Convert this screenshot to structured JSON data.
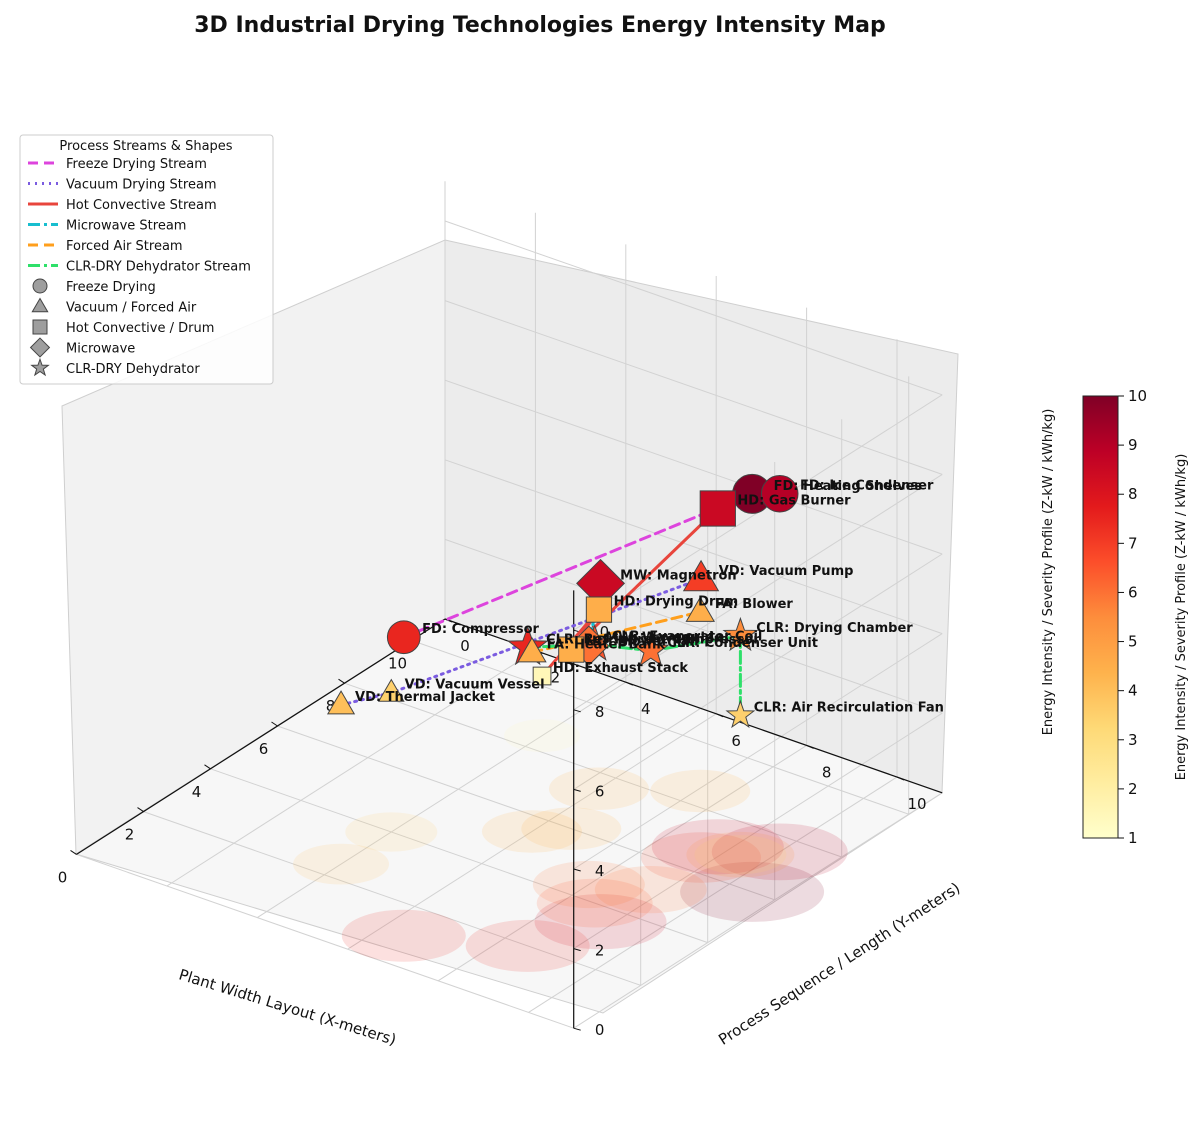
{
  "chart_data": {
    "type": "scatter",
    "title": "3D Industrial Drying Technologies Energy Intensity Map",
    "xlabel": "Plant Width Layout (X-meters)",
    "ylabel": "Process Sequence / Length (Y-meters)",
    "zlabel": "Energy Intensity / Severity Profile (Z-kW / kWh/kg)",
    "xlim": [
      0,
      11
    ],
    "ylim": [
      0,
      11
    ],
    "zlim": [
      0,
      11
    ],
    "xticks": [
      "0",
      "2",
      "4",
      "6",
      "8",
      "10"
    ],
    "yticks": [
      "0",
      "2",
      "4",
      "6",
      "8",
      "10"
    ],
    "zticks": [
      "0",
      "2",
      "4",
      "6",
      "8",
      "10"
    ],
    "grid": true,
    "legend_placement": "upper-left",
    "legend_title": "Process Streams & Shapes",
    "colorbar": {
      "label": "Energy Intensity / Severity Profile (Z-kW / kWh/kg)",
      "range": [
        1,
        10
      ],
      "ticks": [
        "1",
        "2",
        "3",
        "4",
        "5",
        "6",
        "7",
        "8",
        "9",
        "10"
      ],
      "colormap": [
        "#ffffcc",
        "#ffeda0",
        "#fed976",
        "#feb24c",
        "#fd8d3c",
        "#fc4e2a",
        "#e31a1c",
        "#bd0026",
        "#800026"
      ]
    },
    "streams": [
      {
        "name": "Freeze Drying Stream",
        "color": "#dd44dd",
        "dash": "10,6",
        "width": 3,
        "points": [
          "FD: Compressor",
          "FD: Heating Shelves",
          "FD: Ice Condenser"
        ]
      },
      {
        "name": "Vacuum Drying Stream",
        "color": "#7b5ce0",
        "dash": "2,5",
        "width": 3,
        "points": [
          "VD: Thermal Jacket",
          "VD: Vacuum Vessel",
          "VD: Vacuum Pump"
        ]
      },
      {
        "name": "Hot Convective Stream",
        "color": "#e8453c",
        "dash": "",
        "width": 3,
        "points": [
          "HD: Gas Burner",
          "HD: Blower Fan",
          "HD: Drying Drum",
          "HD: Exhaust Stack"
        ]
      },
      {
        "name": "Microwave Stream",
        "color": "#17becf",
        "dash": "12,4,3,4",
        "width": 3,
        "points": [
          "MW: Magnetron",
          "MW: Waveguide"
        ]
      },
      {
        "name": "Forced Air Stream",
        "color": "#ff9f1c",
        "dash": "10,6",
        "width": 3,
        "points": [
          "FA: Heater Bank",
          "FA: Blower"
        ]
      },
      {
        "name": "CLR-DRY Dehydrator Stream",
        "color": "#2ee06a",
        "dash": "12,4,3,4",
        "width": 3,
        "points": [
          "CLR: Refrigerant Compressor",
          "CLR: Evaporator Coil",
          "CLR: Condenser Unit",
          "CLR: Drying Chamber",
          "CLR: Air Recirculation Fan"
        ]
      }
    ],
    "shapes": [
      {
        "name": "Freeze Drying",
        "marker": "circle"
      },
      {
        "name": "Vacuum / Forced Air",
        "marker": "triangle"
      },
      {
        "name": "Hot Convective / Drum",
        "marker": "square"
      },
      {
        "name": "Microwave",
        "marker": "diamond"
      },
      {
        "name": "CLR-DRY Dehydrator",
        "marker": "star"
      }
    ],
    "points": [
      {
        "label": "FD: Compressor",
        "x": 1.0,
        "y": 6.5,
        "z": 7.5,
        "marker": "circle"
      },
      {
        "label": "FD: Heating Shelves",
        "x": 6.0,
        "y": 10.5,
        "z": 10.0,
        "marker": "circle"
      },
      {
        "label": "FD: Ice Condenser",
        "x": 7.5,
        "y": 10.0,
        "z": 9.0,
        "marker": "circle"
      },
      {
        "label": "VD: Thermal Jacket",
        "x": 2.5,
        "y": 4.0,
        "z": 4.0,
        "marker": "triangle"
      },
      {
        "label": "VD: Vacuum Vessel",
        "x": 4.0,
        "y": 4.0,
        "z": 3.5,
        "marker": "triangle"
      },
      {
        "label": "VD: Vacuum Pump",
        "x": 6.5,
        "y": 9.0,
        "z": 7.0,
        "marker": "triangle"
      },
      {
        "label": "HD: Gas Burner",
        "x": 7.0,
        "y": 9.0,
        "z": 8.5,
        "marker": "square"
      },
      {
        "label": "HD: Blower Fan",
        "x": 6.0,
        "y": 6.5,
        "z": 4.5,
        "marker": "square"
      },
      {
        "label": "HD: Drying Drum",
        "x": 7.5,
        "y": 6.0,
        "z": 4.5,
        "marker": "square"
      },
      {
        "label": "HD: Exhaust Stack",
        "x": 8.5,
        "y": 4.0,
        "z": 1.5,
        "marker": "square"
      },
      {
        "label": "MW: Magnetron",
        "x": 3.5,
        "y": 9.0,
        "z": 8.5,
        "marker": "diamond"
      },
      {
        "label": "MW: Waveguide",
        "x": 4.5,
        "y": 8.0,
        "z": 6.0,
        "marker": "diamond"
      },
      {
        "label": "FA: Heater Bank",
        "x": 5.5,
        "y": 6.0,
        "z": 4.5,
        "marker": "triangle"
      },
      {
        "label": "FA: Blower",
        "x": 8.5,
        "y": 7.5,
        "z": 4.5,
        "marker": "triangle"
      },
      {
        "label": "CLR: Refrigerant Compressor",
        "x": 2.0,
        "y": 8.5,
        "z": 7.5,
        "marker": "star"
      },
      {
        "label": "CLR: Evaporator Coil",
        "x": 4.0,
        "y": 8.5,
        "z": 6.5,
        "marker": "star"
      },
      {
        "label": "CLR: Condenser Unit",
        "x": 5.0,
        "y": 9.0,
        "z": 6.0,
        "marker": "star"
      },
      {
        "label": "CLR: Drying Chamber",
        "x": 7.0,
        "y": 9.5,
        "z": 5.5,
        "marker": "star"
      },
      {
        "label": "CLR: Air Recirculation Fan",
        "x": 7.0,
        "y": 9.5,
        "z": 3.5,
        "marker": "star"
      }
    ]
  }
}
